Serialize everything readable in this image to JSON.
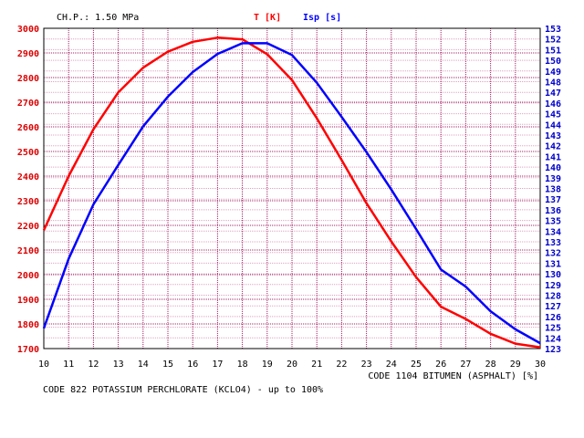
{
  "header": {
    "pressure_label": "CH.P.: 1.50 MPa",
    "legend_t": "T [K]",
    "legend_isp": "Isp [s]"
  },
  "footer": {
    "x_axis_label": "CODE 1104 BITUMEN (ASPHALT) [%]",
    "bottom_label": "CODE  822 POTASSIUM PERCHLORATE (KCLO4) - up to 100%"
  },
  "chart_data": {
    "type": "line",
    "x": [
      10,
      11,
      12,
      13,
      14,
      15,
      16,
      17,
      18,
      19,
      20,
      21,
      22,
      23,
      24,
      25,
      26,
      27,
      28,
      29,
      30
    ],
    "xlim": [
      10,
      30
    ],
    "xticks": [
      "10",
      "11",
      "12",
      "13",
      "14",
      "15",
      "16",
      "17",
      "18",
      "19",
      "20",
      "21",
      "22",
      "23",
      "24",
      "25",
      "26",
      "27",
      "28",
      "29",
      "30"
    ],
    "left_axis": {
      "ylim": [
        1700,
        3000
      ],
      "ticks": [
        "3000",
        "2900",
        "2800",
        "2700",
        "2600",
        "2500",
        "2400",
        "2300",
        "2200",
        "2100",
        "2000",
        "1900",
        "1800",
        "1700"
      ],
      "color": "#dd0000"
    },
    "right_axis": {
      "ylim": [
        123,
        153
      ],
      "ticks": [
        "153",
        "152",
        "151",
        "150",
        "149",
        "148",
        "147",
        "146",
        "145",
        "144",
        "143",
        "142",
        "141",
        "140",
        "139",
        "138",
        "137",
        "136",
        "135",
        "134",
        "133",
        "132",
        "131",
        "130",
        "129",
        "128",
        "127",
        "126",
        "125",
        "124",
        "123"
      ],
      "color": "#0000cc"
    },
    "series": [
      {
        "name": "T [K]",
        "axis": "left",
        "color": "#ff0000",
        "values": [
          2180,
          2400,
          2590,
          2740,
          2840,
          2905,
          2945,
          2962,
          2955,
          2895,
          2790,
          2635,
          2465,
          2290,
          2135,
          1990,
          1870,
          1820,
          1760,
          1720,
          1705
        ]
      },
      {
        "name": "Isp [s]",
        "axis": "right",
        "color": "#0000ff",
        "values": [
          124.9,
          131.4,
          136.5,
          140.2,
          143.8,
          146.6,
          148.9,
          150.6,
          151.6,
          151.6,
          150.5,
          147.9,
          144.7,
          141.4,
          137.9,
          134.2,
          130.4,
          128.8,
          126.5,
          124.8,
          123.5
        ]
      }
    ],
    "grid": true
  },
  "colors": {
    "grid_minor": "#e0a0c0",
    "grid_major": "#a02060"
  }
}
